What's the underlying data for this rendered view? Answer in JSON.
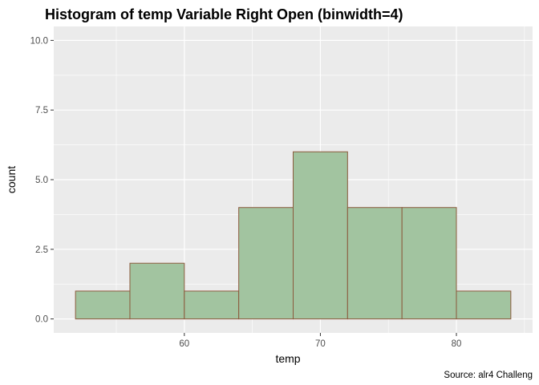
{
  "chart_data": {
    "type": "bar",
    "title": "Histogram of temp Variable Right Open (binwidth=4)",
    "xlabel": "temp",
    "ylabel": "count",
    "caption": "Source: alr4 Challeng",
    "binwidth": 4,
    "bins": [
      {
        "start": 52,
        "end": 56,
        "count": 1
      },
      {
        "start": 56,
        "end": 60,
        "count": 2
      },
      {
        "start": 60,
        "end": 64,
        "count": 1
      },
      {
        "start": 64,
        "end": 68,
        "count": 4
      },
      {
        "start": 68,
        "end": 72,
        "count": 6
      },
      {
        "start": 72,
        "end": 76,
        "count": 4
      },
      {
        "start": 76,
        "end": 80,
        "count": 4
      },
      {
        "start": 80,
        "end": 84,
        "count": 1
      }
    ],
    "xlim": [
      50.4,
      85.6
    ],
    "ylim": [
      -0.5,
      10.5
    ],
    "x_ticks": [
      60,
      70,
      80
    ],
    "x_tick_labels": [
      "60",
      "70",
      "80"
    ],
    "y_ticks": [
      0,
      2.5,
      5,
      7.5,
      10
    ],
    "y_tick_labels": [
      "0.0",
      "2.5",
      "5.0",
      "7.5",
      "10.0"
    ],
    "grid": true,
    "colors": {
      "panel_background": "#ebebeb",
      "grid_major": "#ffffff",
      "bar_fill": "#a2c4a0",
      "bar_stroke": "#8b5a3c",
      "tick_mark": "#333333"
    }
  }
}
